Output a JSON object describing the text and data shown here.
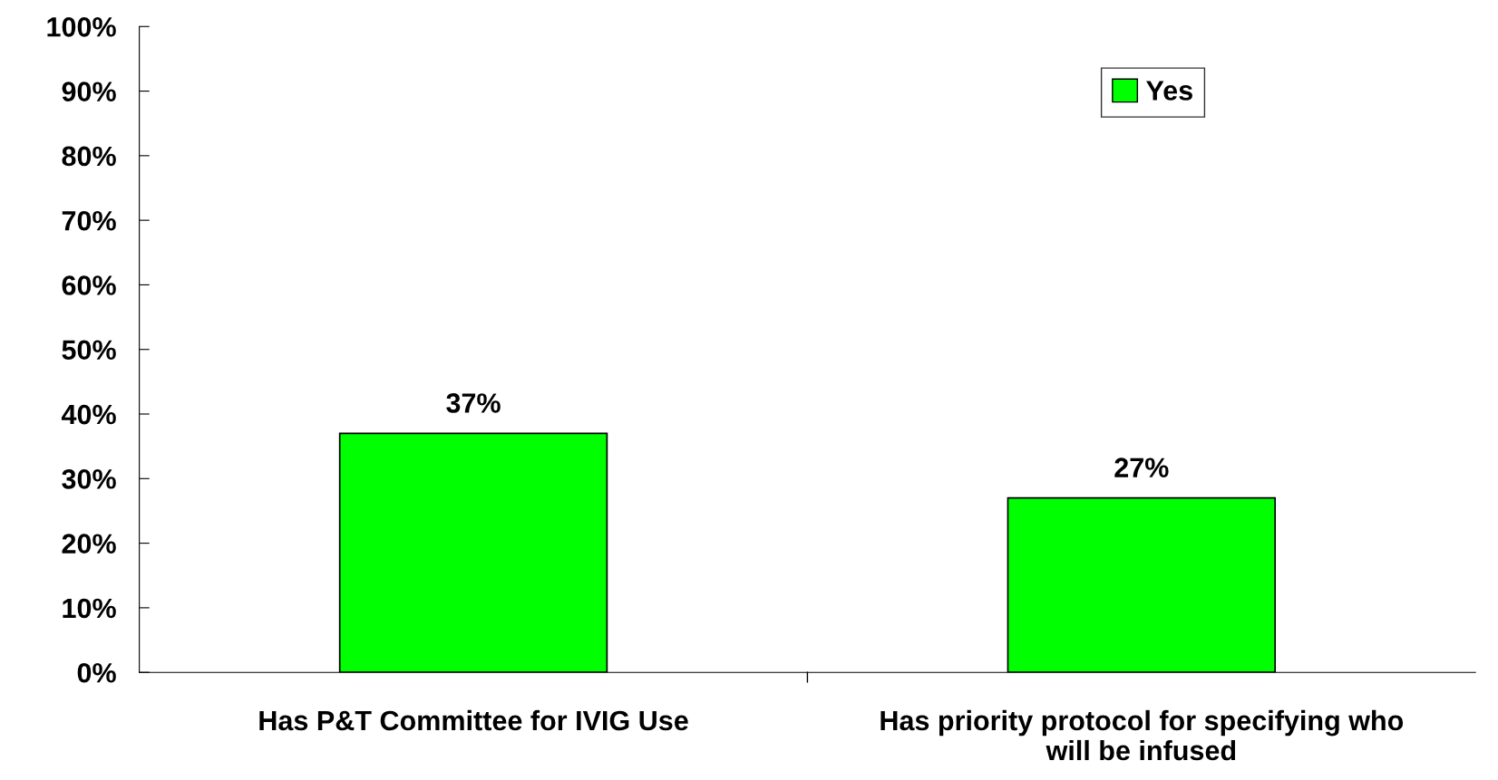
{
  "chart_data": {
    "type": "bar",
    "categories": [
      "Has P&T Committee for IVIG Use",
      "Has priority protocol for specifying who\nwill be infused"
    ],
    "series": [
      {
        "name": "Yes",
        "color": "#00ff00",
        "values": [
          37,
          27
        ]
      }
    ],
    "ylim": [
      0,
      100
    ],
    "yticks": [
      {
        "value": 0,
        "label": "0%"
      },
      {
        "value": 10,
        "label": "10%"
      },
      {
        "value": 20,
        "label": "20%"
      },
      {
        "value": 30,
        "label": "30%"
      },
      {
        "value": 40,
        "label": "40%"
      },
      {
        "value": 50,
        "label": "50%"
      },
      {
        "value": 60,
        "label": "60%"
      },
      {
        "value": 70,
        "label": "70%"
      },
      {
        "value": 80,
        "label": "80%"
      },
      {
        "value": 90,
        "label": "90%"
      },
      {
        "value": 100,
        "label": "100%"
      }
    ],
    "value_labels": [
      "37%",
      "27%"
    ],
    "legend": "top right",
    "grid": false
  }
}
